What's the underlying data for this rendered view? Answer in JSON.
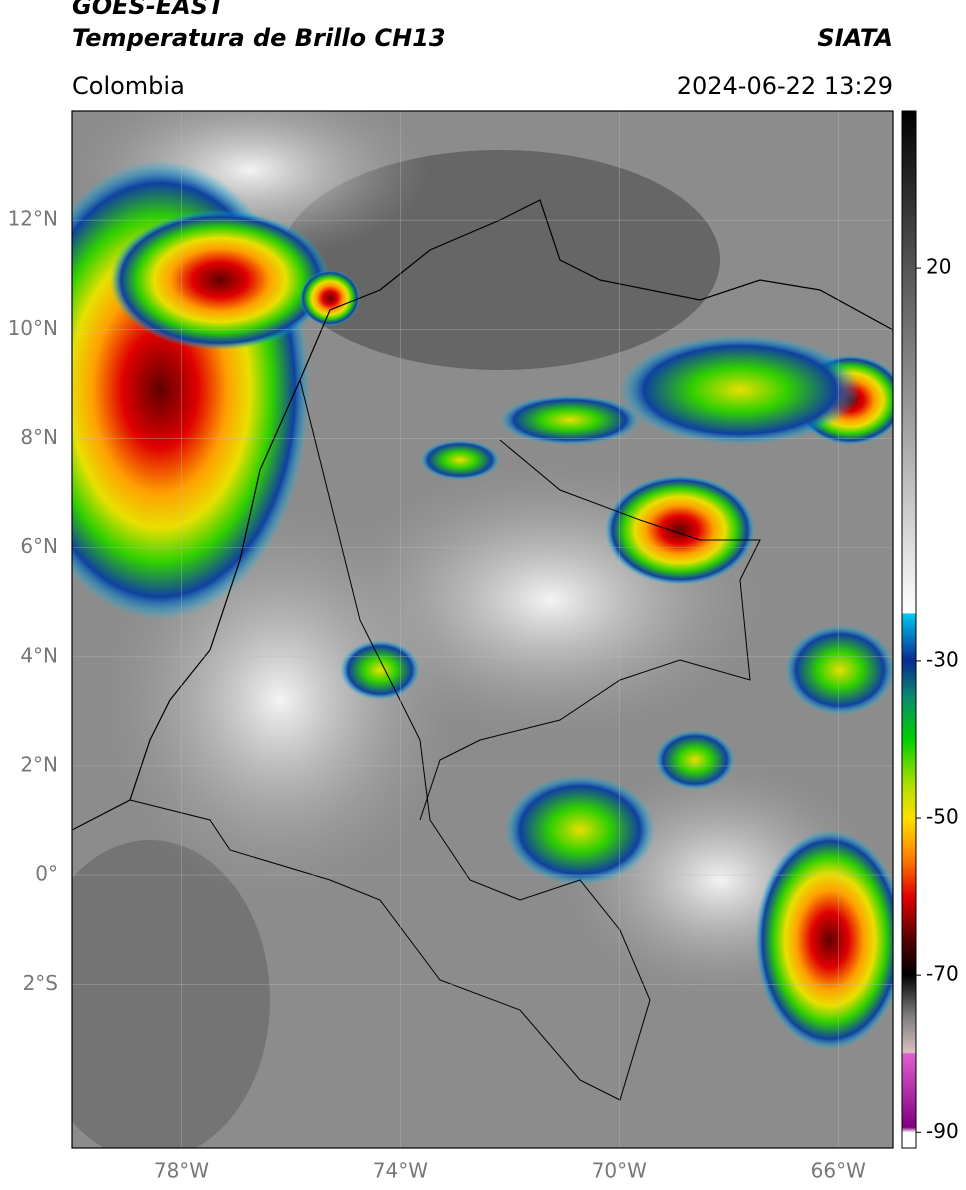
{
  "header": {
    "title": "GOES-EAST",
    "subtitle": "Temperatura de Brillo CH13",
    "region": "Colombia",
    "source": "SIATA",
    "datetime": "2024-06-22 13:29"
  },
  "map": {
    "xlim": [
      -80,
      -65
    ],
    "ylim": [
      -5,
      14
    ],
    "xticks": [
      {
        "value": -78,
        "label": "78°W"
      },
      {
        "value": -74,
        "label": "74°W"
      },
      {
        "value": -70,
        "label": "70°W"
      },
      {
        "value": -66,
        "label": "66°W"
      }
    ],
    "yticks": [
      {
        "value": 12,
        "label": "12°N"
      },
      {
        "value": 10,
        "label": "10°N"
      },
      {
        "value": 8,
        "label": "8°N"
      },
      {
        "value": 6,
        "label": "6°N"
      },
      {
        "value": 4,
        "label": "4°N"
      },
      {
        "value": 2,
        "label": "2°N"
      },
      {
        "value": 0,
        "label": "0°"
      },
      {
        "value": -2,
        "label": "2°S"
      }
    ],
    "colorbar": {
      "lim": [
        -92,
        40
      ],
      "ticks": [
        20,
        -30,
        -50,
        -70,
        -90
      ]
    }
  }
}
